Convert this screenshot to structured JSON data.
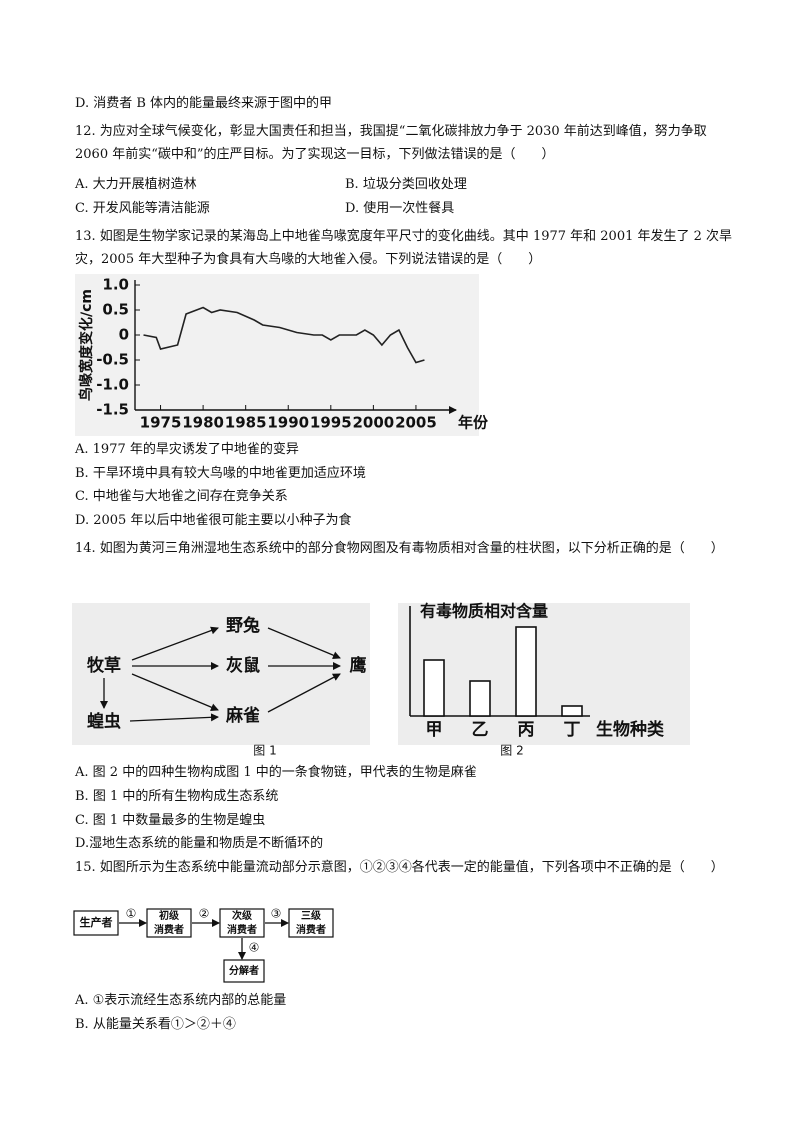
{
  "lines": [
    "D. 消费者 B 体内的能量最终来源于图中的甲"
  ],
  "q12": {
    "stem": "12. 为应对全球气候变化，彰显大国责任和担当，我国提“二氧化碳排放力争于 2030 年前达到峰值，努力争取 2060 年前实“碳中和”的庄严目标。为了实现这一目标，下列做法错误的是（　　）",
    "options": [
      "A. 大力开展植树造林",
      "B. 垃圾分类回收处理",
      "C. 开发风能等清洁能源",
      "D. 使用一次性餐具"
    ]
  },
  "q13": {
    "stem": "13. 如图是生物学家记录的某海岛上中地雀鸟喙宽度年平尺寸的变化曲线。其中 1977 年和 2001 年发生了 2 次旱灾，2005 年大型种子为食具有大鸟喙的大地雀入侵。下列说法错误的是（　　）",
    "options": [
      "A.  1977 年的旱灾诱发了中地雀的变异",
      "B. 干旱环境中具有较大鸟喙的中地雀更加适应环境",
      "C. 中地雀与大地雀之间存在竞争关系",
      "D.  2005 年以后中地雀很可能主要以小种子为食"
    ]
  },
  "q14": {
    "stem": "14. 如图为黄河三角洲湿地生态系统中的部分食物网图及有毒物质相对含量的柱状图，以下分析正确的是（　　）",
    "food_web": {
      "nodes": [
        "牧草",
        "野兔",
        "灰鼠",
        "鹰",
        "蝗虫",
        "麻雀"
      ]
    },
    "figure_captions": [
      "图 1",
      "图 2"
    ],
    "options": [
      "A.  图 2 中的四种生物构成图 1 中的一条食物链，甲代表的生物是麻雀",
      "B.  图 1 中的所有生物构成生态系统",
      "C.  图 1 中数量最多的生物是蝗虫",
      "D.湿地生态系统的能量和物质是不断循环的"
    ]
  },
  "q15": {
    "stem": "15. 如图所示为生态系统中能量流动部分示意图，①②③④各代表一定的能量值，下列各项中不正确的是（　　）",
    "flow": {
      "nodes": [
        "生产者",
        "初级",
        "消费者",
        "次级",
        "消费者",
        "三级",
        "消费者",
        "分解者"
      ],
      "arrows": [
        "①",
        "②",
        "③",
        "④"
      ]
    },
    "options": [
      "A. ①表示流经生态系统内部的总能量",
      "B. 从能量关系看①＞②＋④"
    ]
  },
  "chart_data": [
    {
      "type": "line",
      "ylabel": "鸟喙宽度变化/cm",
      "xlabel": "年份",
      "x": [
        1973,
        1974.5,
        1975,
        1977,
        1978,
        1980,
        1981,
        1982,
        1984,
        1986,
        1987,
        1989,
        1991,
        1993,
        1994,
        1995,
        1996,
        1998,
        1999,
        2000,
        2001,
        2002,
        2003,
        2004,
        2005,
        2006
      ],
      "values": [
        0.0,
        -0.05,
        -0.28,
        -0.2,
        0.42,
        0.55,
        0.45,
        0.5,
        0.45,
        0.3,
        0.2,
        0.15,
        0.05,
        0.0,
        0.0,
        -0.1,
        0.0,
        0.0,
        0.1,
        0.0,
        -0.2,
        0.0,
        0.1,
        -0.25,
        -0.55,
        -0.5
      ],
      "color": "#222222",
      "xlim": [
        1972,
        2009
      ],
      "ylim": [
        -1.5,
        1.1
      ],
      "xticks": [
        1975,
        1980,
        1985,
        1990,
        1995,
        2000,
        2005
      ],
      "yticks": [
        {
          "value": 1,
          "label": "1.0"
        },
        0.5,
        0,
        -0.5,
        {
          "value": -1,
          "label": "-1.0"
        },
        -1.5
      ]
    },
    {
      "type": "bar",
      "title": "有毒物质相对含量",
      "xlabel": "生物种类",
      "categories": [
        "甲",
        "乙",
        "丙",
        "丁"
      ],
      "values": [
        56,
        35,
        89,
        10
      ],
      "color": "#ffffff",
      "ylim": [
        0,
        110
      ]
    }
  ]
}
